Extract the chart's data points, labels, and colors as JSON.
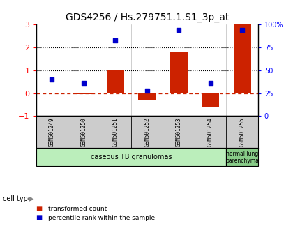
{
  "title": "GDS4256 / Hs.279751.1.S1_3p_at",
  "samples": [
    "GSM501249",
    "GSM501250",
    "GSM501251",
    "GSM501252",
    "GSM501253",
    "GSM501254",
    "GSM501255"
  ],
  "transformed_count": [
    0.0,
    -0.05,
    1.0,
    -0.3,
    1.8,
    -0.6,
    3.0
  ],
  "percentile_rank": [
    0.6,
    0.44,
    2.3,
    0.1,
    2.78,
    0.44,
    2.78
  ],
  "ylim_left": [
    -1,
    3
  ],
  "ylim_right": [
    0,
    100
  ],
  "bar_color": "#cc2200",
  "dot_color": "#0000cc",
  "hline_color": "#cc2200",
  "dotted_line_color": "#000000",
  "bg_color": "#ffffff",
  "cell_type_label": "cell type",
  "group1_label": "caseous TB granulomas",
  "group2_label": "normal lung\nparenchyma",
  "group1_color": "#bbeebb",
  "group2_color": "#88cc88",
  "legend_red": "transformed count",
  "legend_blue": "percentile rank within the sample",
  "title_size": 10,
  "sample_label_color": "#cccccc",
  "right_tick_labels": [
    "0",
    "25",
    "50",
    "75",
    "100%"
  ],
  "right_tick_values": [
    0,
    25,
    50,
    75,
    100
  ]
}
